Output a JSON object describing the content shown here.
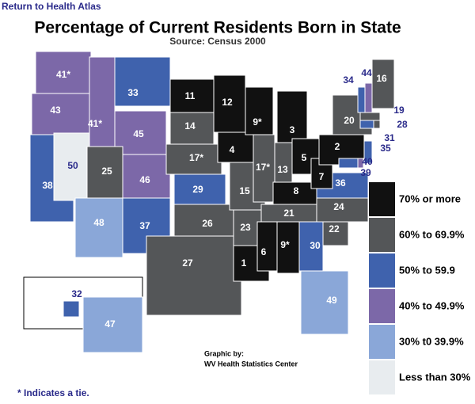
{
  "header": {
    "link": "Return to Health Atlas",
    "title": "Percentage of Current Residents Born in State",
    "source": "Source: Census 2000"
  },
  "states": [
    {
      "label": "41*",
      "color": "#7c68a8"
    },
    {
      "label": "43",
      "color": "#7c68a8"
    },
    {
      "label": "38",
      "color": "#3f62ad"
    },
    {
      "label": "50",
      "color": "#e8ecef"
    },
    {
      "label": "41*",
      "color": "#7c68a8"
    },
    {
      "label": "33",
      "color": "#3f62ad"
    },
    {
      "label": "45",
      "color": "#7c68a8"
    },
    {
      "label": "25",
      "color": "#545658"
    },
    {
      "label": "48",
      "color": "#8aa7d8"
    },
    {
      "label": "46",
      "color": "#7c68a8"
    },
    {
      "label": "37",
      "color": "#3f62ad"
    },
    {
      "label": "11",
      "color": "#111111"
    },
    {
      "label": "14",
      "color": "#545658"
    },
    {
      "label": "17*",
      "color": "#545658"
    },
    {
      "label": "29",
      "color": "#3f62ad"
    },
    {
      "label": "26",
      "color": "#545658"
    },
    {
      "label": "27",
      "color": "#545658"
    },
    {
      "label": "12",
      "color": "#111111"
    },
    {
      "label": "4",
      "color": "#111111"
    },
    {
      "label": "15",
      "color": "#545658"
    },
    {
      "label": "23",
      "color": "#545658"
    },
    {
      "label": "1",
      "color": "#111111"
    },
    {
      "label": "9*",
      "color": "#111111"
    },
    {
      "label": "17*",
      "color": "#545658"
    },
    {
      "label": "3",
      "color": "#111111"
    },
    {
      "label": "13",
      "color": "#545658"
    },
    {
      "label": "5",
      "color": "#111111"
    },
    {
      "label": "8",
      "color": "#111111"
    },
    {
      "label": "21",
      "color": "#545658"
    },
    {
      "label": "6",
      "color": "#111111"
    },
    {
      "label": "9*",
      "color": "#111111"
    },
    {
      "label": "30",
      "color": "#3f62ad"
    },
    {
      "label": "49",
      "color": "#8aa7d8"
    },
    {
      "label": "22",
      "color": "#545658"
    },
    {
      "label": "24",
      "color": "#545658"
    },
    {
      "label": "36",
      "color": "#3f62ad"
    },
    {
      "label": "7",
      "color": "#111111"
    },
    {
      "label": "2",
      "color": "#111111"
    },
    {
      "label": "20",
      "color": "#545658"
    },
    {
      "label": "34",
      "color": "#3f62ad"
    },
    {
      "label": "44",
      "color": "#7c68a8"
    },
    {
      "label": "16",
      "color": "#545658"
    },
    {
      "label": "19",
      "color": "#545658"
    },
    {
      "label": "28",
      "color": "#545658"
    },
    {
      "label": "31",
      "color": "#3f62ad"
    },
    {
      "label": "35",
      "color": "#3f62ad"
    },
    {
      "label": "40",
      "color": "#7c68a8"
    },
    {
      "label": "39",
      "color": "#3f62ad"
    },
    {
      "label": "32",
      "color": "#3f62ad"
    },
    {
      "label": "47",
      "color": "#8aa7d8"
    }
  ],
  "legend": [
    {
      "label": "70% or more",
      "color": "#111111"
    },
    {
      "label": "60% to 69.9%",
      "color": "#545658"
    },
    {
      "label": "50% to 59.9",
      "color": "#3f62ad"
    },
    {
      "label": "40% to 49.9%",
      "color": "#7c68a8"
    },
    {
      "label": "30% t0 39.9%",
      "color": "#8aa7d8"
    },
    {
      "label": "Less than 30%",
      "color": "#e8ecef"
    }
  ],
  "credit": {
    "line1": "Graphic by:",
    "line2": "WV Health Statistics Center"
  },
  "footnote": "* Indicates a tie."
}
